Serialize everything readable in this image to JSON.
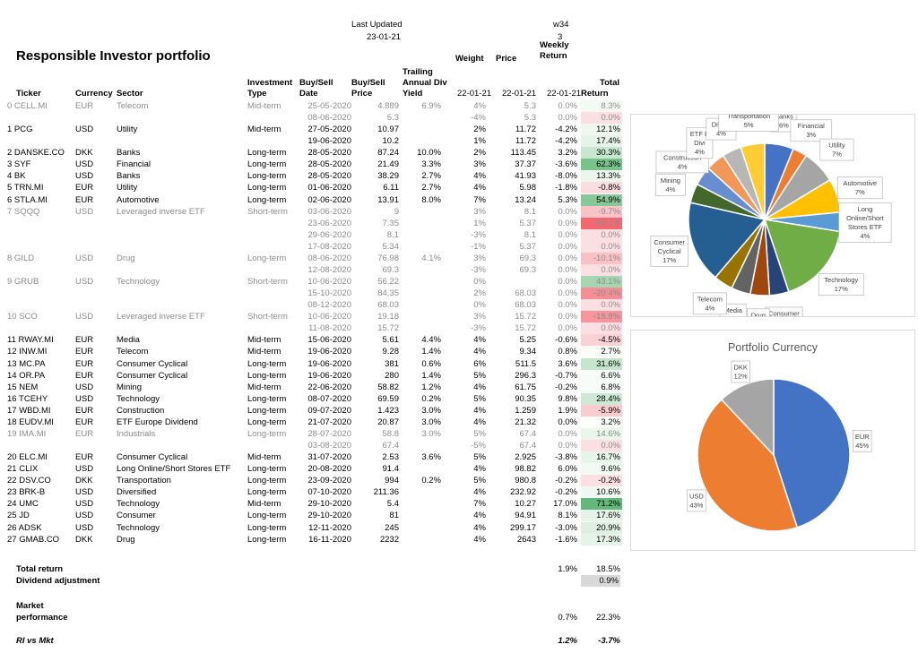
{
  "sheet": {
    "title": "Responsible Investor portfolio",
    "last_updated_label": "Last Updated",
    "last_updated_value": "23-01-21",
    "week_label": "w34",
    "week_num": "3",
    "weekly_return_label_1": "Weekly",
    "weekly_return_label_2": "Return",
    "weight_label": "Weight",
    "price_label": "Price",
    "headers": {
      "ticker": "Ticker",
      "currency": "Currency",
      "sector": "Sector",
      "type_1": "Investment",
      "type_2": "Type",
      "date_1": "Buy/Sell",
      "date_2": "Date",
      "price_1": "Buy/Sell",
      "price_2": "Price",
      "yield_1": "Trailing",
      "yield_2": "Annual Div",
      "yield_3": "Yield",
      "weight_date": "22-01-21",
      "price_date": "22-01-21",
      "week_date": "22-01-21",
      "total_1": "Total",
      "total_2": "Return"
    },
    "rows": [
      {
        "ticker": "0 CELL.MI",
        "currency": "EUR",
        "sector": "Telecom",
        "type": "Mid-term",
        "date": "25-05-2020",
        "price": "4.889",
        "yield": "6.9%",
        "weight": "4%",
        "cur_price": "5.3",
        "weekly": "0.0%",
        "total": "8.3%",
        "grey": true,
        "bg": "#f3f9f4"
      },
      {
        "ticker": "",
        "currency": "",
        "sector": "",
        "type": "",
        "date": "08-06-2020",
        "price": "5.3",
        "yield": "",
        "weight": "-4%",
        "cur_price": "5.3",
        "weekly": "0.0%",
        "total": "0.0%",
        "grey": true,
        "bg": "#fbdfe2"
      },
      {
        "ticker": "1 PCG",
        "currency": "USD",
        "sector": "Utility",
        "type": "Mid-term",
        "date": "27-05-2020",
        "price": "10.97",
        "yield": "",
        "weight": "2%",
        "cur_price": "11.72",
        "weekly": "-4.2%",
        "total": "12.1%",
        "grey": false,
        "bg": "#eef7f0"
      },
      {
        "ticker": "",
        "currency": "",
        "sector": "",
        "type": "",
        "date": "19-06-2020",
        "price": "10.2",
        "yield": "",
        "weight": "1%",
        "cur_price": "11.72",
        "weekly": "-4.2%",
        "total": "17.4%",
        "grey": false,
        "bg": "#e6f3e9"
      },
      {
        "ticker": "2 DANSKE.CO",
        "currency": "DKK",
        "sector": "Banks",
        "type": "Long-term",
        "date": "28-05-2020",
        "price": "87.24",
        "yield": "10.0%",
        "weight": "2%",
        "cur_price": "113.45",
        "weekly": "3.2%",
        "total": "30.3%",
        "grey": false,
        "bg": "#c9e6d0"
      },
      {
        "ticker": "3 SYF",
        "currency": "USD",
        "sector": "Financial",
        "type": "Long-term",
        "date": "28-05-2020",
        "price": "21.49",
        "yield": "3.3%",
        "weight": "3%",
        "cur_price": "37.37",
        "weekly": "-3.6%",
        "total": "62.3%",
        "grey": false,
        "bg": "#78c28c"
      },
      {
        "ticker": "4 BK",
        "currency": "USD",
        "sector": "Banks",
        "type": "Long-term",
        "date": "28-05-2020",
        "price": "38.29",
        "yield": "2.7%",
        "weight": "4%",
        "cur_price": "41.93",
        "weekly": "-8.0%",
        "total": "13.3%",
        "grey": false,
        "bg": "#ecf6ee"
      },
      {
        "ticker": "5 TRN.MI",
        "currency": "EUR",
        "sector": "Utility",
        "type": "Long-term",
        "date": "01-06-2020",
        "price": "6.11",
        "yield": "2.7%",
        "weight": "4%",
        "cur_price": "5.98",
        "weekly": "-1.8%",
        "total": "-0.8%",
        "grey": false,
        "bg": "#fbdde0"
      },
      {
        "ticker": "6 STLA.MI",
        "currency": "EUR",
        "sector": "Automotive",
        "type": "Long-term",
        "date": "02-06-2020",
        "price": "13.91",
        "yield": "8.0%",
        "weight": "7%",
        "cur_price": "13.24",
        "weekly": "5.3%",
        "total": "54.9%",
        "grey": false,
        "bg": "#86c897"
      },
      {
        "ticker": "7 SQQQ",
        "currency": "USD",
        "sector": "Leveraged inverse ETF",
        "type": "Short-term",
        "date": "03-06-2020",
        "price": "9",
        "yield": "",
        "weight": "3%",
        "cur_price": "8.1",
        "weekly": "0.0%",
        "total": "-9.7%",
        "grey": true,
        "bg": "#f9c3c8"
      },
      {
        "ticker": "",
        "currency": "",
        "sector": "",
        "type": "",
        "date": "23-06-2020",
        "price": "7.35",
        "yield": "",
        "weight": "1%",
        "cur_price": "5.37",
        "weekly": "0.0%",
        "total": "-28.1%",
        "grey": true,
        "bg": "#f4676f"
      },
      {
        "ticker": "",
        "currency": "",
        "sector": "",
        "type": "",
        "date": "29-06-2020",
        "price": "8.1",
        "yield": "",
        "weight": "-3%",
        "cur_price": "8.1",
        "weekly": "0.0%",
        "total": "0.0%",
        "grey": true,
        "bg": "#fbdfe2"
      },
      {
        "ticker": "",
        "currency": "",
        "sector": "",
        "type": "",
        "date": "17-08-2020",
        "price": "5.34",
        "yield": "",
        "weight": "-1%",
        "cur_price": "5.37",
        "weekly": "0.0%",
        "total": "0.0%",
        "grey": true,
        "bg": "#fbdfe2"
      },
      {
        "ticker": "8 GILD",
        "currency": "USD",
        "sector": "Drug",
        "type": "Long-term",
        "date": "08-06-2020",
        "price": "76.98",
        "yield": "4.1%",
        "weight": "3%",
        "cur_price": "69.3",
        "weekly": "0.0%",
        "total": "-10.1%",
        "grey": true,
        "bg": "#f9c1c6"
      },
      {
        "ticker": "",
        "currency": "",
        "sector": "",
        "type": "",
        "date": "12-08-2020",
        "price": "69.3",
        "yield": "",
        "weight": "-3%",
        "cur_price": "69.3",
        "weekly": "0.0%",
        "total": "0.0%",
        "grey": true,
        "bg": "#fbdfe2"
      },
      {
        "ticker": "9 GRUB",
        "currency": "USD",
        "sector": "Technology",
        "type": "Short-term",
        "date": "10-06-2020",
        "price": "56.22",
        "yield": "",
        "weight": "0%",
        "cur_price": "",
        "weekly": "0.0%",
        "total": "43.1%",
        "grey": true,
        "bg": "#a5d6b1"
      },
      {
        "ticker": "",
        "currency": "",
        "sector": "",
        "type": "",
        "date": "15-10-2020",
        "price": "84.35",
        "yield": "",
        "weight": "2%",
        "cur_price": "68.03",
        "weekly": "0.0%",
        "total": "-20.4%",
        "grey": true,
        "bg": "#f68d94"
      },
      {
        "ticker": "",
        "currency": "",
        "sector": "",
        "type": "",
        "date": "08-12-2020",
        "price": "68.03",
        "yield": "",
        "weight": "0%",
        "cur_price": "68.03",
        "weekly": "0.0%",
        "total": "0.0%",
        "grey": true,
        "bg": "#fbdfe2"
      },
      {
        "ticker": "10 SCO",
        "currency": "USD",
        "sector": "Leveraged inverse ETF",
        "type": "Short-term",
        "date": "10-06-2020",
        "price": "19.18",
        "yield": "",
        "weight": "3%",
        "cur_price": "15.72",
        "weekly": "0.0%",
        "total": "-18.8%",
        "grey": true,
        "bg": "#f7959c"
      },
      {
        "ticker": "",
        "currency": "",
        "sector": "",
        "type": "",
        "date": "11-08-2020",
        "price": "15.72",
        "yield": "",
        "weight": "-3%",
        "cur_price": "15.72",
        "weekly": "0.0%",
        "total": "0.0%",
        "grey": true,
        "bg": "#fbdfe2"
      },
      {
        "ticker": "11 RWAY.MI",
        "currency": "EUR",
        "sector": "Media",
        "type": "Mid-term",
        "date": "15-06-2020",
        "price": "5.61",
        "yield": "4.4%",
        "weight": "4%",
        "cur_price": "5.25",
        "weekly": "-0.6%",
        "total": "-4.5%",
        "grey": false,
        "bg": "#fad2d6"
      },
      {
        "ticker": "12 INW.MI",
        "currency": "EUR",
        "sector": "Telecom",
        "type": "Mid-term",
        "date": "19-06-2020",
        "price": "9.28",
        "yield": "1.4%",
        "weight": "4%",
        "cur_price": "9.34",
        "weekly": "0.8%",
        "total": "2.7%",
        "grey": false,
        "bg": "#fbfdfb"
      },
      {
        "ticker": "13 MC.PA",
        "currency": "EUR",
        "sector": "Consumer Cyclical",
        "type": "Long-term",
        "date": "19-06-2020",
        "price": "381",
        "yield": "0.6%",
        "weight": "6%",
        "cur_price": "511.5",
        "weekly": "3.6%",
        "total": "31.6%",
        "grey": false,
        "bg": "#c6e5cd"
      },
      {
        "ticker": "14 OR.PA",
        "currency": "EUR",
        "sector": "Consumer Cyclical",
        "type": "Long-term",
        "date": "19-06-2020",
        "price": "280",
        "yield": "1.4%",
        "weight": "5%",
        "cur_price": "296.3",
        "weekly": "-0.7%",
        "total": "6.6%",
        "grey": false,
        "bg": "#f8fcf9"
      },
      {
        "ticker": "15 NEM",
        "currency": "USD",
        "sector": "Mining",
        "type": "Mid-term",
        "date": "22-06-2020",
        "price": "58.82",
        "yield": "1.2%",
        "weight": "4%",
        "cur_price": "61.75",
        "weekly": "-0.2%",
        "total": "6.8%",
        "grey": false,
        "bg": "#f8fcf9"
      },
      {
        "ticker": "16 TCEHY",
        "currency": "USD",
        "sector": "Technology",
        "type": "Long-term",
        "date": "08-07-2020",
        "price": "69.59",
        "yield": "0.2%",
        "weight": "5%",
        "cur_price": "90.35",
        "weekly": "9.8%",
        "total": "28.4%",
        "grey": false,
        "bg": "#cde8d4"
      },
      {
        "ticker": "17 WBD.MI",
        "currency": "EUR",
        "sector": "Construction",
        "type": "Long-term",
        "date": "09-07-2020",
        "price": "1.423",
        "yield": "3.0%",
        "weight": "4%",
        "cur_price": "1.259",
        "weekly": "1.9%",
        "total": "-5.9%",
        "grey": false,
        "bg": "#f9ccd0"
      },
      {
        "ticker": "18 EUDV.MI",
        "currency": "EUR",
        "sector": "ETF Europe Dividend",
        "type": "Long-term",
        "date": "21-07-2020",
        "price": "20.87",
        "yield": "3.0%",
        "weight": "4%",
        "cur_price": "21.32",
        "weekly": "0.0%",
        "total": "3.2%",
        "grey": false,
        "bg": "#fcfefc"
      },
      {
        "ticker": "19 IMA.MI",
        "currency": "EUR",
        "sector": "Industrials",
        "type": "Long-term",
        "date": "28-07-2020",
        "price": "58.8",
        "yield": "3.0%",
        "weight": "5%",
        "cur_price": "67.4",
        "weekly": "0.0%",
        "total": "14.6%",
        "grey": true,
        "bg": "#eaf5ec"
      },
      {
        "ticker": "",
        "currency": "",
        "sector": "",
        "type": "",
        "date": "03-08-2020",
        "price": "67.4",
        "yield": "",
        "weight": "-5%",
        "cur_price": "67.4",
        "weekly": "0.0%",
        "total": "0.0%",
        "grey": true,
        "bg": "#fbdfe2"
      },
      {
        "ticker": "20 ELC.MI",
        "currency": "EUR",
        "sector": "Consumer Cyclical",
        "type": "Mid-term",
        "date": "31-07-2020",
        "price": "2.53",
        "yield": "3.6%",
        "weight": "5%",
        "cur_price": "2.925",
        "weekly": "-3.8%",
        "total": "16.7%",
        "grey": false,
        "bg": "#e7f4ea"
      },
      {
        "ticker": "21 CLIX",
        "currency": "USD",
        "sector": "Long Online/Short Stores ETF",
        "type": "Long-term",
        "date": "20-08-2020",
        "price": "91.4",
        "yield": "",
        "weight": "4%",
        "cur_price": "98.82",
        "weekly": "6.0%",
        "total": "9.6%",
        "grey": false,
        "bg": "#f3f9f4"
      },
      {
        "ticker": "22 DSV.CO",
        "currency": "DKK",
        "sector": "Transportation",
        "type": "Long-term",
        "date": "23-09-2020",
        "price": "994",
        "yield": "0.2%",
        "weight": "5%",
        "cur_price": "980.8",
        "weekly": "-0.2%",
        "total": "-0.2%",
        "grey": false,
        "bg": "#fbdfe2"
      },
      {
        "ticker": "23 BRK-B",
        "currency": "USD",
        "sector": "Diversified",
        "type": "Long-term",
        "date": "07-10-2020",
        "price": "211.36",
        "yield": "",
        "weight": "4%",
        "cur_price": "232.92",
        "weekly": "-0.2%",
        "total": "10.6%",
        "grey": false,
        "bg": "#f1f8f3"
      },
      {
        "ticker": "24 UMC",
        "currency": "USD",
        "sector": "Technology",
        "type": "Mid-term",
        "date": "29-10-2020",
        "price": "5.4",
        "yield": "",
        "weight": "7%",
        "cur_price": "10.27",
        "weekly": "17.0%",
        "total": "71.2%",
        "grey": false,
        "bg": "#63b97b"
      },
      {
        "ticker": "25 JD",
        "currency": "USD",
        "sector": "Consumer",
        "type": "Long-term",
        "date": "29-10-2020",
        "price": "81",
        "yield": "",
        "weight": "4%",
        "cur_price": "94.91",
        "weekly": "8.1%",
        "total": "17.6%",
        "grey": false,
        "bg": "#e6f3e9"
      },
      {
        "ticker": "26 ADSK",
        "currency": "USD",
        "sector": "Technology",
        "type": "Long-term",
        "date": "12-11-2020",
        "price": "245",
        "yield": "",
        "weight": "4%",
        "cur_price": "299.17",
        "weekly": "-3.0%",
        "total": "20.9%",
        "grey": false,
        "bg": "#dfefe3"
      },
      {
        "ticker": "27 GMAB.CO",
        "currency": "DKK",
        "sector": "Drug",
        "type": "Long-term",
        "date": "16-11-2020",
        "price": "2232",
        "yield": "",
        "weight": "4%",
        "cur_price": "2643",
        "weekly": "-1.6%",
        "total": "17.3%",
        "grey": false,
        "bg": "#e6f3e9"
      }
    ],
    "summary": {
      "total_return_label": "Total return",
      "total_return_weekly": "1.9%",
      "total_return_total": "18.5%",
      "dividend_label": "Dividend adjustment",
      "dividend_value": "0.9%",
      "market_label_1": "Market",
      "market_label_2": "performance",
      "market_weekly": "0.7%",
      "market_total": "22.3%",
      "ri_label": "RI vs Mkt",
      "ri_weekly": "1.2%",
      "ri_total": "-3.7%"
    }
  },
  "chart_data": [
    {
      "type": "pie",
      "title": "",
      "labels": [
        "Banks",
        "Financial",
        "Utility",
        "Automotive",
        "Long Online/Short Stores ETF",
        "Technology",
        "Consumer",
        "Drug",
        "Media",
        "Telecom",
        "Consumer Cyclical",
        "Mining",
        "Construction",
        "ETF Europe Dividend",
        "Diversified",
        "Transportation"
      ],
      "label_display": [
        "Banks",
        "Financial",
        "Utility",
        "Automotive",
        "Long Online/Short Stores ETF",
        "Technology",
        "Consumer",
        "Drug",
        "Media",
        "Telecom",
        "Consumer Cyclical",
        "Mining",
        "Construction",
        "ETF E Divi",
        "Divers",
        "Transportation"
      ],
      "values": [
        6,
        3,
        7,
        7,
        4,
        17,
        4,
        4,
        4,
        4,
        17,
        4,
        4,
        4,
        4,
        5
      ],
      "value_labels": [
        "6%",
        "3%",
        "7%",
        "7%",
        "4%",
        "17%",
        "4%",
        "4%",
        "4%",
        "4%",
        "17%",
        "4%",
        "4%",
        "4%",
        "4%",
        "5%"
      ],
      "colors": [
        "#4472c4",
        "#ed7d31",
        "#a5a5a5",
        "#ffc000",
        "#5b9bd5",
        "#70ad47",
        "#264478",
        "#9e480e",
        "#636363",
        "#997300",
        "#255e91",
        "#43682b",
        "#698ed0",
        "#f1975a",
        "#b7b7b7",
        "#ffcd33"
      ]
    },
    {
      "type": "pie",
      "title": "Portfolio Currency",
      "labels": [
        "EUR",
        "USD",
        "DKK"
      ],
      "values": [
        45,
        43,
        12
      ],
      "value_labels": [
        "45%",
        "43%",
        "12%"
      ],
      "colors": [
        "#4472c4",
        "#ed7d31",
        "#a5a5a5"
      ]
    }
  ]
}
